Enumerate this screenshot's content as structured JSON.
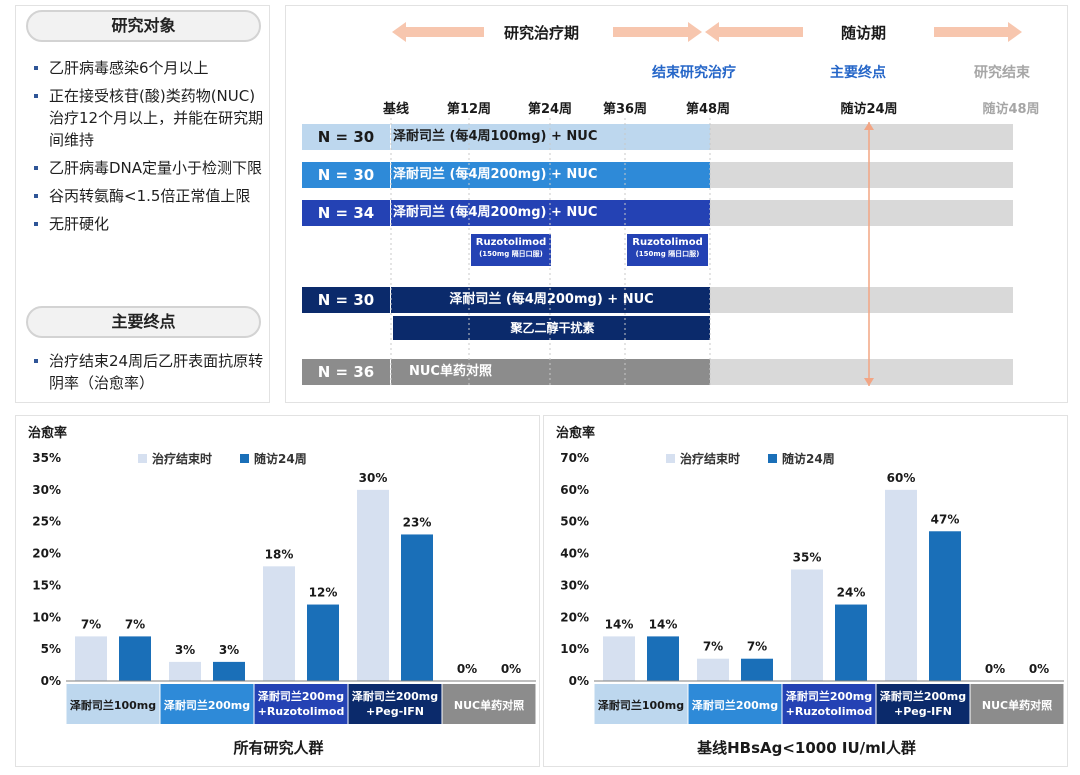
{
  "criteria": {
    "title": "研究对象",
    "items": [
      "乙肝病毒感染6个月以上",
      "正在接受核苷(酸)类药物(NUC)治疗12个月以上，并能在研究期间维持",
      "乙肝病毒DNA定量小于检测下限",
      "谷丙转氨酶<1.5倍正常值上限",
      "无肝硬化"
    ],
    "endpoint_title": "主要终点",
    "endpoint_items": [
      "治疗结束24周后乙肝表面抗原转阴率（治愈率）"
    ]
  },
  "timeline": {
    "treatment_period": "研究治疗期",
    "followup_period": "随访期",
    "phases": {
      "end_treatment": "结束研究治疗",
      "primary_endpoint": "主要终点",
      "study_end": "研究结束"
    },
    "weeks": [
      "基线",
      "第12周",
      "第24周",
      "第36周",
      "第48周",
      "随访24周",
      "随访48周"
    ],
    "arms": [
      {
        "n": "N = 30",
        "label": "泽耐司兰 (每4周100mg) + NUC",
        "n_color": "#bdd7ee",
        "bar_color": "#bdd7ee",
        "text_color": "#1a1a1a"
      },
      {
        "n": "N = 30",
        "label": "泽耐司兰 (每4周200mg) + NUC",
        "n_color": "#2e8ad8",
        "bar_color": "#2e8ad8",
        "text_color": "#ffffff"
      },
      {
        "n": "N = 34",
        "label": "泽耐司兰 (每4周200mg) + NUC",
        "n_color": "#2442b4",
        "bar_color": "#2442b4",
        "text_color": "#ffffff"
      },
      {
        "n": "N = 30",
        "label": "泽耐司兰 (每4周200mg) + NUC",
        "n_color": "#0b2a6b",
        "bar_color": "#0b2a6b",
        "text_color": "#ffffff"
      },
      {
        "n": "N = 36",
        "label": "NUC单药对照",
        "n_color": "#8c8c8c",
        "bar_color": "#8c8c8c",
        "text_color": "#ffffff"
      }
    ],
    "ruzotolimod": {
      "name": "Ruzotolimod",
      "dose": "(150mg 隔日口服)"
    },
    "peg_ifn": "聚乙二醇干扰素"
  },
  "colors": {
    "light": "#d6e0f0",
    "dark": "#1a6fb8",
    "arrow": "#f7c6ae",
    "phase_blue": "#2566c8",
    "phase_gray": "#a6a6a6"
  },
  "chart_data": [
    {
      "type": "bar",
      "ytitle": "治愈率",
      "xlabel": "所有研究人群",
      "ylim": [
        0,
        35
      ],
      "yticks": [
        "0%",
        "5%",
        "10%",
        "15%",
        "20%",
        "25%",
        "30%",
        "35%"
      ],
      "categories": [
        "泽耐司兰100mg",
        "泽耐司兰200mg",
        "泽耐司兰200mg\n+Ruzotolimod",
        "泽耐司兰200mg\n+Peg-IFN",
        "NUC单药对照"
      ],
      "category_colors": [
        "#bdd7ee",
        "#2e8ad8",
        "#2442b4",
        "#0b2a6b",
        "#8c8c8c"
      ],
      "series": [
        {
          "name": "治疗结束时",
          "values": [
            7,
            3,
            18,
            30,
            0
          ],
          "labels": [
            "7%",
            "3%",
            "18%",
            "30%",
            "0%"
          ]
        },
        {
          "name": "随访24周",
          "values": [
            7,
            3,
            12,
            23,
            0
          ],
          "labels": [
            "7%",
            "3%",
            "12%",
            "23%",
            "0%"
          ]
        }
      ],
      "legend": "top"
    },
    {
      "type": "bar",
      "ytitle": "治愈率",
      "xlabel": "基线HBsAg<1000 IU/ml人群",
      "ylim": [
        0,
        70
      ],
      "yticks": [
        "0%",
        "10%",
        "20%",
        "30%",
        "40%",
        "50%",
        "60%",
        "70%"
      ],
      "categories": [
        "泽耐司兰100mg",
        "泽耐司兰200mg",
        "泽耐司兰200mg\n+Ruzotolimod",
        "泽耐司兰200mg\n+Peg-IFN",
        "NUC单药对照"
      ],
      "category_colors": [
        "#bdd7ee",
        "#2e8ad8",
        "#2442b4",
        "#0b2a6b",
        "#8c8c8c"
      ],
      "series": [
        {
          "name": "治疗结束时",
          "values": [
            14,
            7,
            35,
            60,
            0
          ],
          "labels": [
            "14%",
            "7%",
            "35%",
            "60%",
            "0%"
          ]
        },
        {
          "name": "随访24周",
          "values": [
            14,
            7,
            24,
            47,
            0
          ],
          "labels": [
            "14%",
            "7%",
            "24%",
            "47%",
            "0%"
          ]
        }
      ],
      "legend": "top"
    }
  ]
}
